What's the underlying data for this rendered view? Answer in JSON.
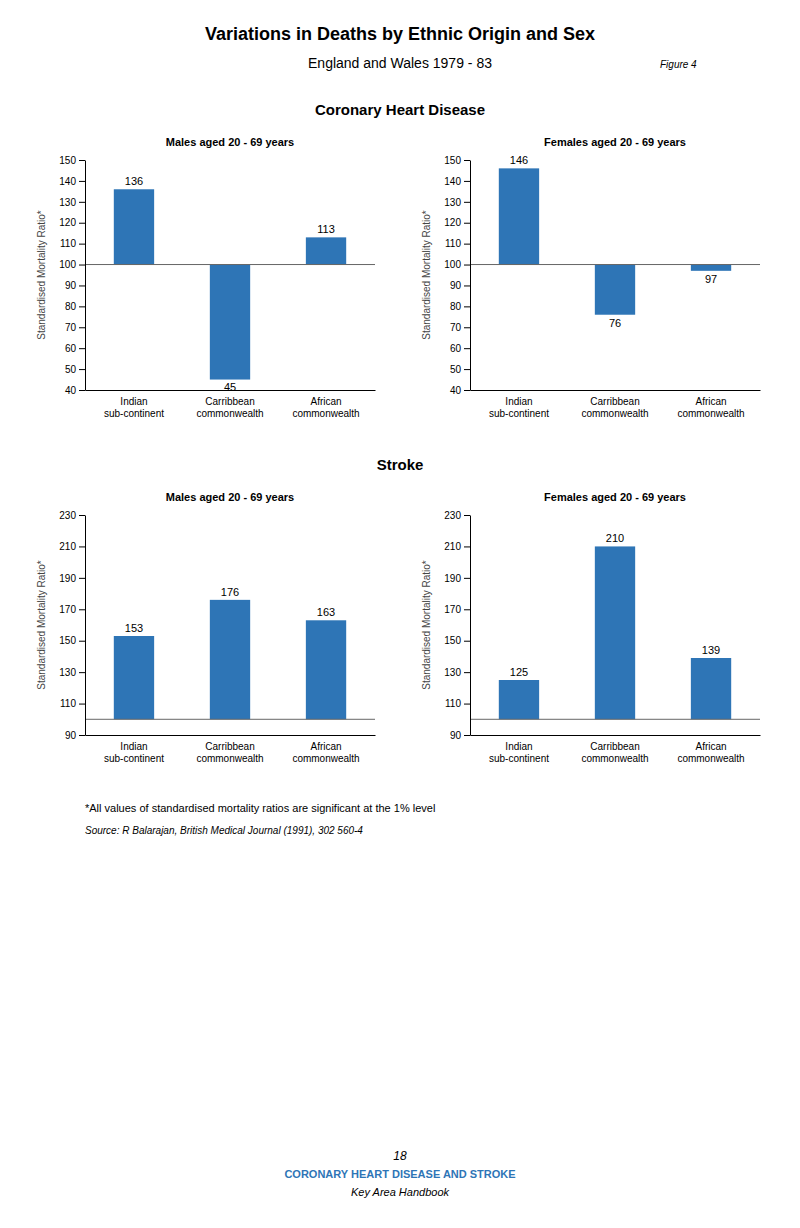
{
  "title": "Variations in Deaths by Ethnic Origin and Sex",
  "subtitle": "England and Wales  1979 - 83",
  "annotations": [
    "Figure 4",
    "Coronary Heart Disease",
    "Stroke",
    "*All values of standardised mortality ratios are significant at the 1% level",
    "Source: R Balarajan, British Medical Journal (1991), 302  560-4",
    "18",
    "CORONARY HEART DISEASE AND STROKE",
    "Key Area Handbook"
  ],
  "chart_data": [
    {
      "type": "bar",
      "title": "Males aged 20 - 69 years",
      "categories": [
        "Indian\nsub-continent",
        "Carribbean\ncommonwealth",
        "African\ncommonwealth"
      ],
      "values": [
        136,
        45,
        113
      ],
      "baseline": 100,
      "color": "#2e75b6",
      "ylim": [
        40,
        150
      ],
      "yticks": [
        40,
        50,
        60,
        70,
        80,
        90,
        100,
        110,
        120,
        130,
        140,
        150
      ],
      "ylabel": "Standardised Mortality Ratio*",
      "grid": false,
      "data_labels": true
    },
    {
      "type": "bar",
      "title": "Females aged 20 - 69 years",
      "categories": [
        "Indian\nsub-continent",
        "Carribbean\ncommonwealth",
        "African\ncommonwealth"
      ],
      "values": [
        146,
        76,
        97
      ],
      "baseline": 100,
      "color": "#2e75b6",
      "ylim": [
        40,
        150
      ],
      "yticks": [
        40,
        50,
        60,
        70,
        80,
        90,
        100,
        110,
        120,
        130,
        140,
        150
      ],
      "ylabel": "Standardised Mortality Ratio*",
      "grid": false,
      "data_labels": true
    },
    {
      "type": "bar",
      "title": "Males aged 20 - 69 years",
      "categories": [
        "Indian\nsub-continent",
        "Carribbean\ncommonwealth",
        "African\ncommonwealth"
      ],
      "values": [
        153,
        176,
        163
      ],
      "baseline": 100,
      "color": "#2e75b6",
      "ylim": [
        90,
        230
      ],
      "yticks": [
        90,
        110,
        130,
        150,
        170,
        190,
        210,
        230
      ],
      "ylabel": "Standardised Mortality Ratio*",
      "grid": false,
      "data_labels": true
    },
    {
      "type": "bar",
      "title": "Females aged 20 - 69 years",
      "categories": [
        "Indian\nsub-continent",
        "Carribbean\ncommonwealth",
        "African\ncommonwealth"
      ],
      "values": [
        125,
        210,
        139
      ],
      "baseline": 100,
      "color": "#2e75b6",
      "ylim": [
        90,
        230
      ],
      "yticks": [
        90,
        110,
        130,
        150,
        170,
        190,
        210,
        230
      ],
      "ylabel": "Standardised Mortality Ratio*",
      "grid": false,
      "data_labels": true
    }
  ]
}
